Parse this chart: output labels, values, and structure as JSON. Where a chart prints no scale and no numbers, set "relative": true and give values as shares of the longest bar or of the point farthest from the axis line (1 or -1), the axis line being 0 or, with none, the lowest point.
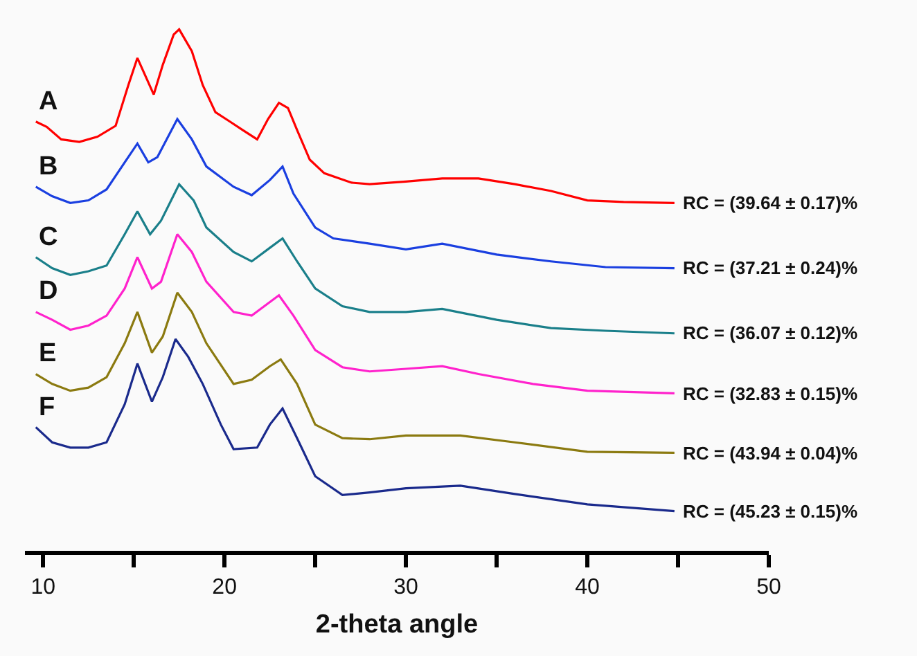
{
  "chart_data": {
    "type": "line",
    "relative": true,
    "xlabel": "2-theta angle",
    "xlim": [
      9,
      50
    ],
    "xticks": [
      10,
      {
        "value": 15,
        "label": null
      },
      20,
      {
        "value": 25,
        "label": null
      },
      30,
      {
        "value": 35,
        "label": null
      },
      40,
      {
        "value": 45,
        "label": null
      },
      50
    ],
    "grid": false,
    "legend": false,
    "marker": "none",
    "line_style": "solid",
    "series": [
      {
        "name": "A",
        "color": "#ff0000",
        "x": [
          9.6,
          10.2,
          11,
          12,
          13,
          14,
          14.7,
          15.2,
          15.7,
          16.1,
          16.6,
          17.2,
          17.5,
          18.2,
          18.8,
          19.5,
          20.3,
          21,
          21.8,
          22.4,
          23,
          23.5,
          24,
          24.7,
          25.5,
          27,
          28,
          30,
          32,
          34,
          36,
          38,
          40,
          42,
          44.8
        ],
        "values": [
          0.823,
          0.813,
          0.789,
          0.784,
          0.794,
          0.815,
          0.893,
          0.945,
          0.906,
          0.875,
          0.932,
          0.99,
          1.0,
          0.958,
          0.893,
          0.841,
          0.823,
          0.807,
          0.789,
          0.828,
          0.859,
          0.849,
          0.807,
          0.75,
          0.724,
          0.706,
          0.703,
          0.708,
          0.714,
          0.714,
          0.703,
          0.69,
          0.672,
          0.669,
          0.667
        ]
      },
      {
        "name": "B",
        "color": "#1a3fe0",
        "x": [
          9.6,
          10.5,
          11.5,
          12.5,
          13.5,
          14.5,
          15.2,
          15.8,
          16.3,
          17.4,
          18.2,
          19,
          20.5,
          21.5,
          22.5,
          23.2,
          23.8,
          25,
          26,
          28,
          30,
          32,
          35,
          38,
          41,
          44.8
        ],
        "values": [
          0.698,
          0.68,
          0.667,
          0.672,
          0.693,
          0.745,
          0.781,
          0.745,
          0.755,
          0.828,
          0.789,
          0.737,
          0.698,
          0.682,
          0.711,
          0.737,
          0.685,
          0.62,
          0.599,
          0.589,
          0.578,
          0.589,
          0.568,
          0.555,
          0.544,
          0.542
        ]
      },
      {
        "name": "C",
        "color": "#1a7f8a",
        "x": [
          9.6,
          10.5,
          11.5,
          12.5,
          13.5,
          14.5,
          15.2,
          15.9,
          16.5,
          17.5,
          18.3,
          19,
          20.5,
          21.5,
          22.5,
          23.2,
          24,
          25,
          26.5,
          28,
          30,
          32,
          35,
          38,
          41,
          44.8
        ],
        "values": [
          0.563,
          0.542,
          0.529,
          0.536,
          0.547,
          0.607,
          0.651,
          0.607,
          0.633,
          0.703,
          0.672,
          0.62,
          0.573,
          0.555,
          0.581,
          0.599,
          0.555,
          0.503,
          0.469,
          0.458,
          0.458,
          0.464,
          0.443,
          0.427,
          0.422,
          0.417
        ]
      },
      {
        "name": "D",
        "color": "#ff22cc",
        "x": [
          9.6,
          10.5,
          11.5,
          12.5,
          13.5,
          14.5,
          15.2,
          16,
          16.5,
          17.4,
          18.2,
          19,
          20.5,
          21.5,
          22.5,
          23,
          23.8,
          25,
          26.5,
          28,
          30,
          32,
          34,
          37,
          40,
          44.8
        ],
        "values": [
          0.458,
          0.443,
          0.424,
          0.432,
          0.451,
          0.503,
          0.563,
          0.503,
          0.516,
          0.607,
          0.573,
          0.516,
          0.458,
          0.451,
          0.477,
          0.49,
          0.451,
          0.385,
          0.352,
          0.344,
          0.349,
          0.354,
          0.339,
          0.32,
          0.307,
          0.302
        ]
      },
      {
        "name": "E",
        "color": "#8b7a10",
        "x": [
          9.6,
          10.5,
          11.5,
          12.5,
          13.5,
          14.5,
          15.2,
          16,
          16.6,
          17.4,
          18.2,
          19,
          20.5,
          21.5,
          22.5,
          23.1,
          24,
          25,
          26.5,
          28,
          30,
          33,
          36,
          40,
          44.8
        ],
        "values": [
          0.339,
          0.32,
          0.307,
          0.313,
          0.333,
          0.398,
          0.458,
          0.38,
          0.411,
          0.495,
          0.458,
          0.398,
          0.32,
          0.328,
          0.354,
          0.367,
          0.32,
          0.242,
          0.216,
          0.214,
          0.221,
          0.221,
          0.208,
          0.19,
          0.188
        ]
      },
      {
        "name": "F",
        "color": "#1a2a8c",
        "x": [
          9.6,
          10.5,
          11.5,
          12.5,
          13.5,
          14.5,
          15.2,
          16,
          16.6,
          17.3,
          18,
          18.8,
          19.8,
          20.5,
          21.8,
          22.5,
          23.2,
          24,
          25,
          26.5,
          28,
          30,
          33,
          36,
          40,
          44.8
        ],
        "values": [
          0.237,
          0.208,
          0.198,
          0.198,
          0.208,
          0.281,
          0.359,
          0.286,
          0.333,
          0.406,
          0.372,
          0.32,
          0.242,
          0.195,
          0.198,
          0.242,
          0.273,
          0.216,
          0.143,
          0.107,
          0.112,
          0.12,
          0.125,
          0.109,
          0.089,
          0.076
        ]
      }
    ],
    "annotations": [
      "RC = (39.64 ± 0.17)%",
      "RC = (37.21 ± 0.24)%",
      "RC = (36.07 ± 0.12)%",
      "RC = (32.83 ± 0.15)%",
      "RC = (43.94 ± 0.04)%",
      "RC = (45.23 ± 0.15)%"
    ]
  }
}
